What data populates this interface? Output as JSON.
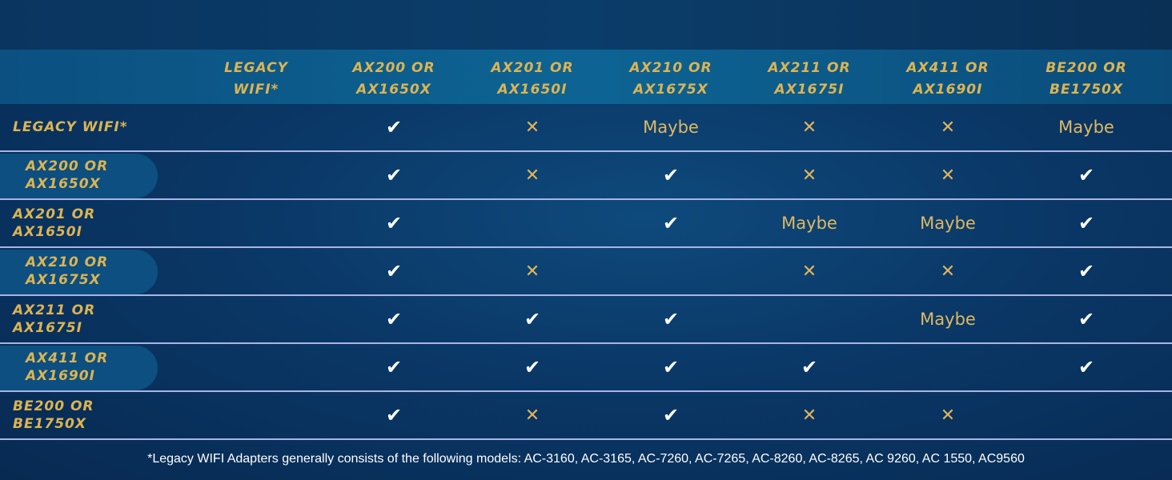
{
  "columns": [
    "LEGACY\nWIFI*",
    "AX200 OR\nAX1650X",
    "AX201 OR\nAX1650I",
    "AX210 OR\nAX1675X",
    "AX211 OR\nAX1675I",
    "AX411 OR\nAX1690I",
    "BE200 OR\nBE1750X"
  ],
  "rows": [
    {
      "label": "LEGACY WIFI*",
      "cells": [
        "",
        "check",
        "cross",
        "Maybe",
        "cross",
        "cross",
        "Maybe"
      ]
    },
    {
      "label": "AX200 OR\nAX1650X",
      "cells": [
        "",
        "check",
        "cross",
        "check",
        "cross",
        "cross",
        "check"
      ]
    },
    {
      "label": "AX201 OR\nAX1650I",
      "cells": [
        "",
        "check",
        "",
        "check",
        "Maybe",
        "Maybe",
        "check"
      ]
    },
    {
      "label": "AX210 OR\nAX1675X",
      "cells": [
        "",
        "check",
        "cross",
        "",
        "cross",
        "cross",
        "check"
      ]
    },
    {
      "label": "AX211 OR\nAX1675I",
      "cells": [
        "",
        "check",
        "check",
        "check",
        "",
        "Maybe",
        "check"
      ]
    },
    {
      "label": "AX411 OR\nAX1690I",
      "cells": [
        "",
        "check",
        "check",
        "check",
        "check",
        "",
        "check"
      ]
    },
    {
      "label": "BE200 OR\nBE1750X",
      "cells": [
        "",
        "check",
        "cross",
        "check",
        "cross",
        "cross",
        ""
      ]
    }
  ],
  "footnote": "*Legacy WIFI Adapters generally consists of the following models: AC-3160, AC-3165, AC-7260, AC-7265, AC-8260, AC-8265, AC 9260, AC 1550, AC9560",
  "colors": {
    "gold": "#dcb452",
    "check": "#ffffff",
    "background": "#0a3766"
  }
}
